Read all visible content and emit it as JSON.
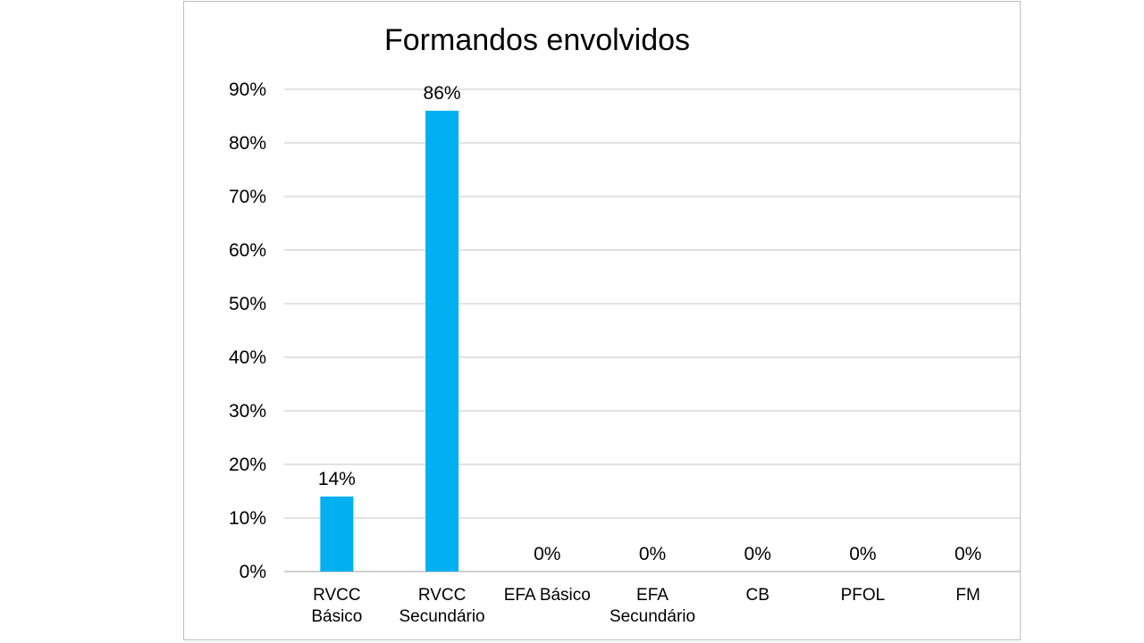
{
  "chart_data": {
    "type": "bar",
    "title": "Formandos envolvidos",
    "xlabel": "",
    "ylabel": "",
    "categories": [
      [
        "RVCC",
        "Básico"
      ],
      [
        "RVCC",
        "Secundário"
      ],
      [
        "EFA Básico"
      ],
      [
        "EFA",
        "Secundário"
      ],
      [
        "CB"
      ],
      [
        "PFOL"
      ],
      [
        "FM"
      ]
    ],
    "values": [
      14,
      86,
      0,
      0,
      0,
      0,
      0
    ],
    "data_labels": [
      "14%",
      "86%",
      "0%",
      "0%",
      "0%",
      "0%",
      "0%"
    ],
    "ylim": [
      0,
      90
    ],
    "yticks": [
      0,
      10,
      20,
      30,
      40,
      50,
      60,
      70,
      80,
      90
    ],
    "ytick_labels": [
      "0%",
      "10%",
      "20%",
      "30%",
      "40%",
      "50%",
      "60%",
      "70%",
      "80%",
      "90%"
    ],
    "bar_color": "#00b0f0",
    "grid": true,
    "legend": "none"
  }
}
